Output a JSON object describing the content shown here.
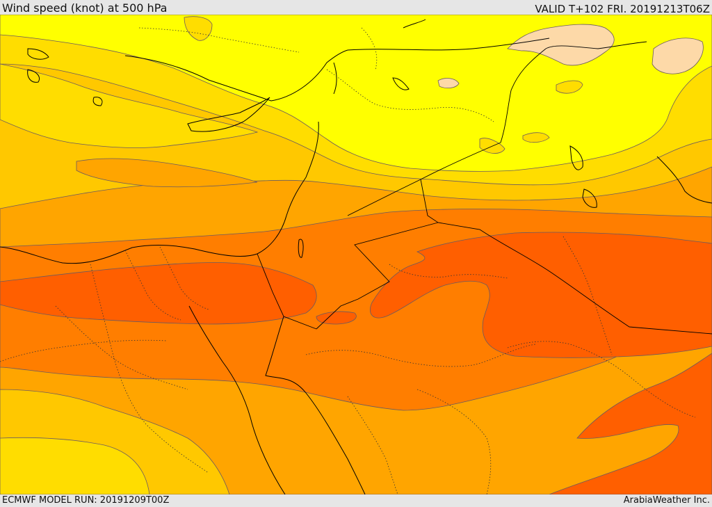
{
  "header": {
    "title": "Wind speed (knot) at 500 hPa",
    "valid": "VALID T+102 FRI. 20191213T06Z"
  },
  "footer": {
    "model_run": "ECMWF MODEL RUN: 20191209T00Z",
    "credit": "ArabiaWeather Inc."
  },
  "colors": {
    "band_light_yellow": "#ffff00",
    "band_gold": "#ffdd00",
    "band_orange_yellow": "#ffc800",
    "band_orange": "#ffa500",
    "band_dark_orange": "#ff7e00",
    "band_red_orange": "#ff5f00",
    "band_peach": "#fdd9a8"
  }
}
